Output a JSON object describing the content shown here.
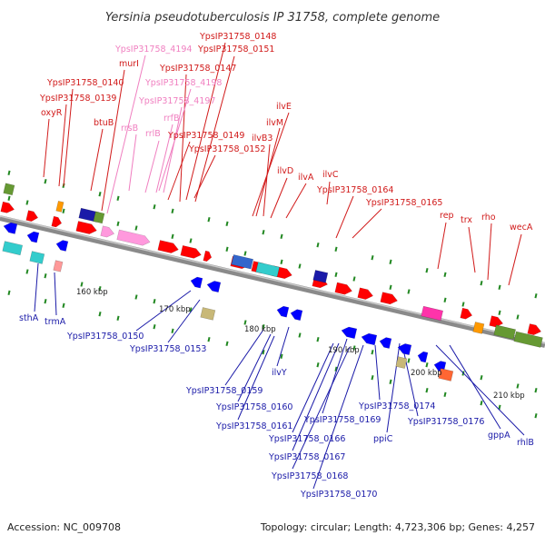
{
  "title": "Yersinia pseudotuberculosis IP 31758, complete genome",
  "footer": {
    "accession": "Accession: NC_009708",
    "summary": "Topology: circular; Length: 4,723,306 bp; Genes: 4,257"
  },
  "ticks": [
    "160 kbp",
    "170 kbp",
    "180 kbp",
    "190 kbp",
    "200 kbp",
    "210 kbp"
  ],
  "labels_top": [
    "YpsIP31758_0148",
    "YpsIP31758_4194",
    "YpsIP31758_0151",
    "murI",
    "YpsIP31758_0147",
    "YpsIP31758_4198",
    "YpsIP31758_0140",
    "YpsIP31758_4197",
    "YpsIP31758_0139",
    "oxyR",
    "rrfB",
    "btuB",
    "rrsB",
    "rrlB",
    "YpsIP31758_0149",
    "YpsIP31758_0152",
    "ilvE",
    "ilvM",
    "ilvB3",
    "ilvD",
    "ilvA",
    "ilvC",
    "YpsIP31758_0164",
    "YpsIP31758_0165",
    "rep",
    "trx",
    "rho",
    "wecA"
  ],
  "labels_bottom": [
    "sthA",
    "trmA",
    "YpsIP31758_0150",
    "YpsIP31758_0153",
    "ilvY",
    "YpsIP31758_0159",
    "YpsIP31758_0160",
    "YpsIP31758_0161",
    "YpsIP31758_0169",
    "YpsIP31758_0174",
    "YpsIP31758_0176",
    "YpsIP31758_0166",
    "YpsIP31758_0167",
    "YpsIP31758_0168",
    "YpsIP31758_0170",
    "ppiC",
    "gppA",
    "rhlB"
  ],
  "colors": {
    "label_forward": "#d11a1a",
    "label_rrna": "#f07fc0",
    "label_reverse": "#1a1aa8",
    "backbone": "#808080",
    "gene_forward": "#ff0000",
    "gene_reverse": "#0000ff",
    "rrna": "#ff99dd",
    "cog_green": "#669933",
    "cog_cyan": "#33cccc",
    "tick_green": "#228822"
  },
  "icons": {
    "gene": "arrow-shape",
    "cog": "rect-block"
  }
}
